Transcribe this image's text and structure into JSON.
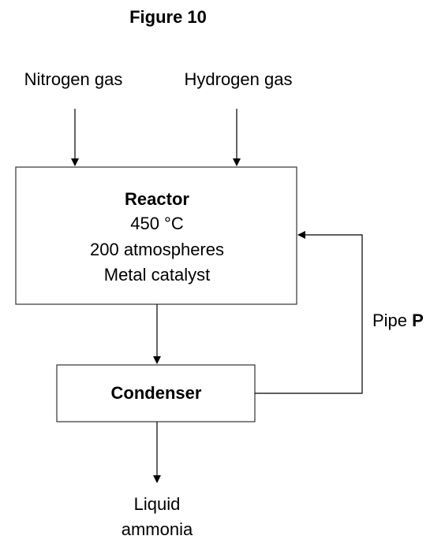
{
  "title": "Figure 10",
  "inputs": [
    "Nitrogen gas",
    "Hydrogen gas"
  ],
  "reactor": {
    "label": "Reactor",
    "lines": [
      "450 °C",
      "200 atmospheres",
      "Metal catalyst"
    ]
  },
  "condenser": {
    "label": "Condenser"
  },
  "pipe": {
    "label": "Pipe",
    "name": "P"
  },
  "output": [
    "Liquid",
    "ammonia"
  ]
}
